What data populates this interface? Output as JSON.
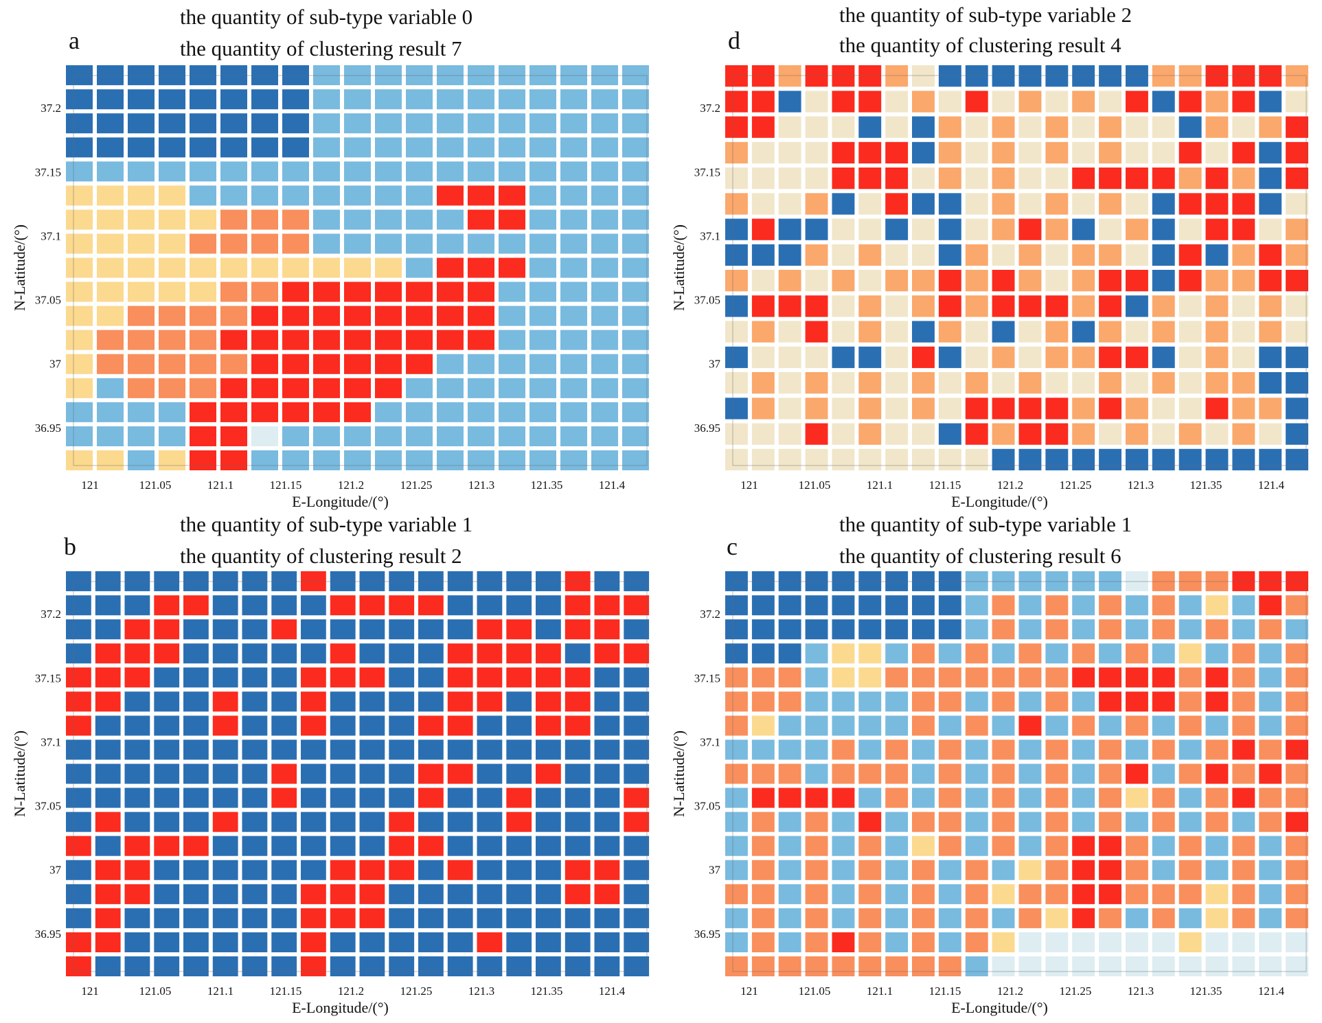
{
  "palette": {
    "dark_blue": "#2b6fb3",
    "mid_blue": "#79badf",
    "light_blue": "#c0dfec",
    "pale_blue": "#ddedf2",
    "yellow": "#fbd98f",
    "cream": "#f1e6c9",
    "orange_light": "#fba86c",
    "orange": "#f98f5c",
    "red": "#fb2b1f"
  },
  "chart_data": [
    {
      "id": "a",
      "letter": "a",
      "type": "heatmap",
      "title_line1": "the quantity of sub-type variable  0",
      "title_line2": "the quantity of clustering result  7",
      "xlabel": "E-Longitude/(°)",
      "ylabel": "N-Latitude/(°)",
      "x_ticks": [
        "121",
        "121.05",
        "121.1",
        "121.15",
        "121.2",
        "121.25",
        "121.3",
        "121.35",
        "121.4"
      ],
      "y_ticks": [
        "37.2",
        "37.15",
        "37.1",
        "37.05",
        "37",
        "36.95"
      ],
      "xlim": [
        120.98,
        121.43
      ],
      "ylim": [
        36.915,
        37.235
      ],
      "clusters": [
        "dark_blue",
        "mid_blue",
        "light_blue",
        "pale_blue",
        "yellow",
        "orange",
        "red"
      ],
      "grid": [
        "0000000011111111111",
        "0000000011111111111",
        "0000000011111111111",
        "0000000011111111111",
        "1111111111111111111",
        "4444111111116661111",
        "4444455511111661111",
        "4444555511111111111",
        "4444444444416661111",
        "4444455666666611111",
        "4455556666666611111",
        "4555566666666611111",
        "4555556666661111111",
        "4155566666611111111",
        "1111666666111111111",
        "1111663111111111111",
        "4414661111111111111"
      ]
    },
    {
      "id": "d",
      "letter": "d",
      "type": "heatmap",
      "title_line1": "the quantity of sub-type variable  2",
      "title_line2": "the quantity of clustering result  4",
      "xlabel": "E-Longitude/(°)",
      "ylabel": "N-Latitude/(°)",
      "x_ticks": [
        "121",
        "121.05",
        "121.1",
        "121.15",
        "121.2",
        "121.25",
        "121.3",
        "121.35",
        "121.4"
      ],
      "y_ticks": [
        "37.2",
        "37.15",
        "37.1",
        "37.05",
        "37",
        "36.95"
      ],
      "xlim": [
        120.98,
        121.43
      ],
      "ylim": [
        36.915,
        37.235
      ],
      "clusters": [
        "dark_blue",
        "cream",
        "orange_light",
        "red"
      ],
      "grid": [
        "3323332100000000223332",
        "3301331213121213032301",
        "3311101021212121102123",
        "2111333021212121131303",
        "1111333121211333323203",
        "2112013001212121033301",
        "0300110101232012013312",
        "0002121102121221030232",
        "2121212232321233032233",
        "0333121232333230212121",
        "1213121021012021212121",
        "0111001301212233012100",
        "1212121212121121212200",
        "0212121213333232113220",
        "1113121103233212121210",
        "1111111111000000000000"
      ]
    },
    {
      "id": "b",
      "letter": "b",
      "type": "heatmap",
      "title_line1": "the quantity of sub-type variable  1",
      "title_line2": "the quantity of clustering result  2",
      "xlabel": "E-Longitude/(°)",
      "ylabel": "N-Latitude/(°)",
      "x_ticks": [
        "121",
        "121.05",
        "121.1",
        "121.15",
        "121.2",
        "121.25",
        "121.3",
        "121.35",
        "121.4"
      ],
      "y_ticks": [
        "37.2",
        "37.15",
        "37.1",
        "37.05",
        "37",
        "36.95"
      ],
      "xlim": [
        120.98,
        121.43
      ],
      "ylim": [
        36.915,
        37.235
      ],
      "clusters": [
        "dark_blue",
        "red"
      ],
      "grid": [
        "00000000100000000100",
        "00011000011110000111",
        "00110001000000110110",
        "01110000010001111011",
        "11100000111001111100",
        "11000100100001101100",
        "10000100100011001100",
        "00000000000000000000",
        "00000001000011001000",
        "00000001000010010001",
        "01000100000100010001",
        "10111000000110000000",
        "01100000011101000110",
        "01100000111000000110",
        "01000000111000000000",
        "11000000100000100000",
        "10000000100000000000"
      ]
    },
    {
      "id": "c",
      "letter": "c",
      "type": "heatmap",
      "title_line1": "the quantity of sub-type variable  1",
      "title_line2": "the quantity of clustering result  6",
      "xlabel": "E-Longitude/(°)",
      "ylabel": "N-Latitude/(°)",
      "x_ticks": [
        "121",
        "121.05",
        "121.1",
        "121.15",
        "121.2",
        "121.25",
        "121.3",
        "121.35",
        "121.4"
      ],
      "y_ticks": [
        "37.2",
        "37.15",
        "37.1",
        "37.05",
        "37",
        "36.95"
      ],
      "xlim": [
        120.98,
        121.43
      ],
      "ylim": [
        36.915,
        37.235
      ],
      "clusters": [
        "dark_blue",
        "mid_blue",
        "pale_blue",
        "yellow",
        "orange",
        "red"
      ],
      "grid": [
        "0000000001111112444555",
        "0000000001414141413154",
        "0000000001414141414141",
        "0001331414141414131414",
        "4441334444444555545414",
        "4441111441414155545414",
        "4311111414151414141414",
        "1111414141414141414545",
        "4441444141414145145454",
        "1555514141414143414544",
        "1414151441414141414145",
        "1414141341414554141414",
        "1414141414134554141414",
        "4414141414344554443414",
        "1414141414143541413414",
        "1414541414322222232222",
        "4444444441222222222222"
      ]
    }
  ]
}
